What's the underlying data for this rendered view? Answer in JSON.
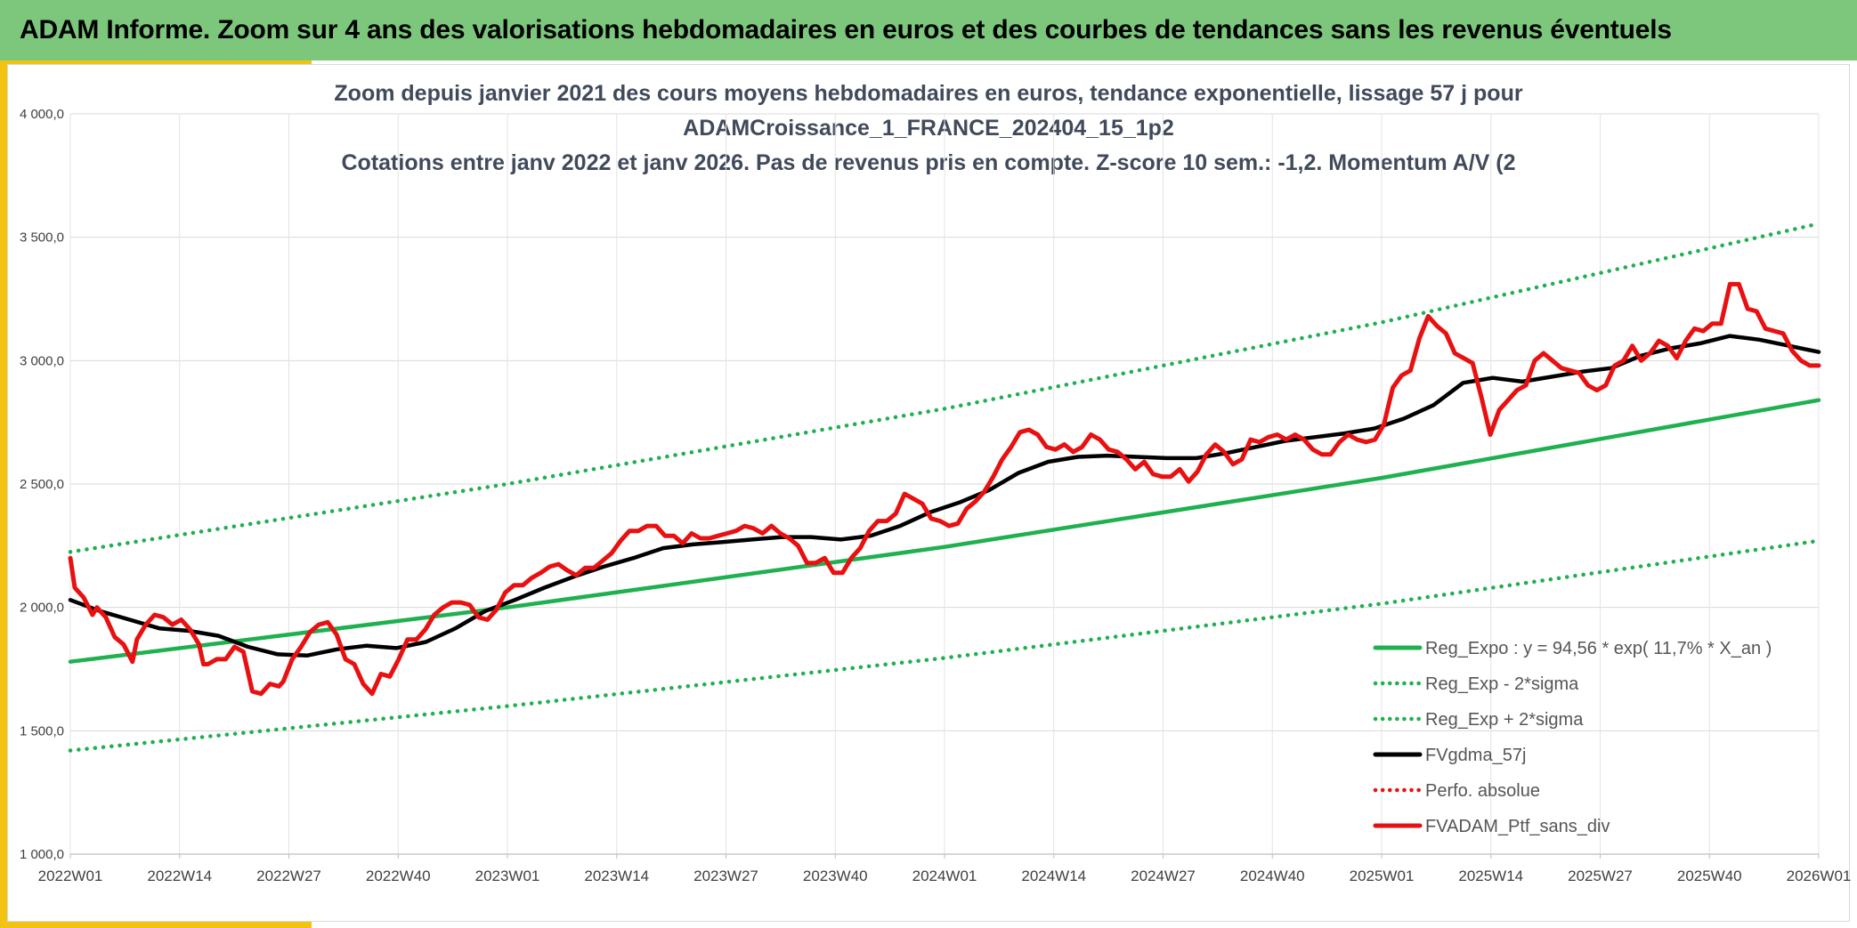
{
  "header": {
    "title": "ADAM Informe. Zoom sur 4 ans des valorisations hebdomadaires en euros et des courbes de tendances sans les revenus éventuels"
  },
  "colors": {
    "header_bg": "#7dc77d",
    "accent": "#f2c411",
    "trend": "#1fb050",
    "ma": "#000000",
    "price": "#e81010"
  },
  "chart_data": {
    "type": "line",
    "title_lines": [
      "Zoom depuis janvier 2021 des cours moyens hebdomadaires en euros, tendance exponentielle, lissage 57 j pour",
      "ADAMCroissance_1_FRANCE_202404_15_1p2",
      "Cotations entre janv 2022 et janv 2026. Pas de revenus pris en compte. Z-score 10 sem.: -1,2. Momentum A/V (2"
    ],
    "ylim": [
      1000,
      4000
    ],
    "y_ticks": [
      "1 000,0",
      "1 500,0",
      "2 000,0",
      "2 500,0",
      "3 000,0",
      "3 500,0",
      "4 000,0"
    ],
    "x_tick_labels": [
      "2022W01",
      "2022W14",
      "2022W27",
      "2022W40",
      "2023W01",
      "2023W14",
      "2023W27",
      "2023W40",
      "2024W01",
      "2024W14",
      "2024W27",
      "2024W40",
      "2025W01",
      "2025W14",
      "2025W27",
      "2025W40",
      "2026W01"
    ],
    "x_range_weeks": [
      0,
      208
    ],
    "grid": true,
    "legend_position": "bottom-right",
    "legend": [
      {
        "label": "Reg_Expo : y = 94,56 * exp( 11,7% *  X_an )",
        "color": "#1fb050",
        "style": "solid"
      },
      {
        "label": "Reg_Exp - 2*sigma",
        "color": "#1fb050",
        "style": "dotted"
      },
      {
        "label": "Reg_Exp + 2*sigma",
        "color": "#1fb050",
        "style": "dotted"
      },
      {
        "label": "FVgdma_57j",
        "color": "#000000",
        "style": "solid"
      },
      {
        "label": "Perfo. absolue",
        "color": "#e81010",
        "style": "dotted"
      },
      {
        "label": "FVADAM_Ptf_sans_div",
        "color": "#e81010",
        "style": "solid"
      }
    ],
    "series": [
      {
        "name": "Reg_Expo : y = 94,56 * exp( 11,7% *  X_an )",
        "color": "#1fb050",
        "style": "solid",
        "points": [
          [
            0,
            1780
          ],
          [
            52,
            2000
          ],
          [
            104,
            2245
          ],
          [
            156,
            2525
          ],
          [
            208,
            2840
          ]
        ]
      },
      {
        "name": "Reg_Exp - 2*sigma",
        "color": "#1fb050",
        "style": "dotted",
        "points": [
          [
            0,
            1420
          ],
          [
            52,
            1600
          ],
          [
            104,
            1795
          ],
          [
            156,
            2015
          ],
          [
            208,
            2270
          ]
        ]
      },
      {
        "name": "Reg_Exp + 2*sigma",
        "color": "#1fb050",
        "style": "dotted",
        "points": [
          [
            0,
            2225
          ],
          [
            52,
            2500
          ],
          [
            104,
            2805
          ],
          [
            156,
            3155
          ],
          [
            208,
            3555
          ]
        ]
      },
      {
        "name": "FVgdma_57j",
        "color": "#000000",
        "style": "solid",
        "points": [
          [
            0,
            2030
          ],
          [
            4,
            1985
          ],
          [
            8,
            1950
          ],
          [
            12,
            1915
          ],
          [
            16,
            1905
          ],
          [
            20,
            1885
          ],
          [
            24,
            1840
          ],
          [
            28,
            1810
          ],
          [
            32,
            1805
          ],
          [
            36,
            1830
          ],
          [
            40,
            1845
          ],
          [
            44,
            1835
          ],
          [
            48,
            1860
          ],
          [
            52,
            1915
          ],
          [
            56,
            1985
          ],
          [
            60,
            2030
          ],
          [
            64,
            2080
          ],
          [
            68,
            2125
          ],
          [
            72,
            2165
          ],
          [
            76,
            2200
          ],
          [
            80,
            2240
          ],
          [
            84,
            2255
          ],
          [
            88,
            2265
          ],
          [
            92,
            2275
          ],
          [
            96,
            2285
          ],
          [
            100,
            2285
          ],
          [
            104,
            2275
          ],
          [
            108,
            2290
          ],
          [
            112,
            2330
          ],
          [
            116,
            2385
          ],
          [
            120,
            2425
          ],
          [
            124,
            2475
          ],
          [
            128,
            2545
          ],
          [
            132,
            2590
          ],
          [
            136,
            2610
          ],
          [
            140,
            2615
          ],
          [
            144,
            2610
          ],
          [
            148,
            2605
          ],
          [
            152,
            2605
          ],
          [
            156,
            2625
          ],
          [
            160,
            2650
          ],
          [
            164,
            2675
          ],
          [
            168,
            2690
          ],
          [
            172,
            2705
          ],
          [
            176,
            2725
          ],
          [
            180,
            2765
          ],
          [
            184,
            2820
          ],
          [
            188,
            2910
          ],
          [
            192,
            2930
          ],
          [
            196,
            2915
          ],
          [
            200,
            2935
          ],
          [
            204,
            2955
          ],
          [
            208,
            2970
          ],
          [
            212,
            3020
          ],
          [
            216,
            3050
          ],
          [
            220,
            3070
          ],
          [
            224,
            3100
          ],
          [
            228,
            3085
          ],
          [
            232,
            3060
          ],
          [
            236,
            3035
          ]
        ]
      },
      {
        "name": "FVADAM_Ptf_sans_div",
        "color": "#e81010",
        "style": "solid",
        "points": [
          [
            0,
            2200
          ],
          [
            1,
            2080
          ],
          [
            3,
            2040
          ],
          [
            5,
            1970
          ],
          [
            6,
            2000
          ],
          [
            8,
            1960
          ],
          [
            10,
            1880
          ],
          [
            12,
            1850
          ],
          [
            14,
            1780
          ],
          [
            15,
            1870
          ],
          [
            17,
            1930
          ],
          [
            19,
            1970
          ],
          [
            21,
            1960
          ],
          [
            23,
            1930
          ],
          [
            25,
            1950
          ],
          [
            27,
            1910
          ],
          [
            29,
            1850
          ],
          [
            30,
            1770
          ],
          [
            31,
            1770
          ],
          [
            33,
            1790
          ],
          [
            35,
            1790
          ],
          [
            37,
            1840
          ],
          [
            39,
            1820
          ],
          [
            41,
            1660
          ],
          [
            43,
            1650
          ],
          [
            45,
            1690
          ],
          [
            47,
            1680
          ],
          [
            48,
            1700
          ],
          [
            50,
            1790
          ],
          [
            52,
            1840
          ],
          [
            54,
            1900
          ],
          [
            56,
            1930
          ],
          [
            58,
            1940
          ],
          [
            60,
            1890
          ],
          [
            62,
            1790
          ],
          [
            64,
            1770
          ],
          [
            66,
            1690
          ],
          [
            68,
            1650
          ],
          [
            70,
            1730
          ],
          [
            72,
            1720
          ],
          [
            74,
            1790
          ],
          [
            76,
            1870
          ],
          [
            78,
            1870
          ],
          [
            80,
            1910
          ],
          [
            82,
            1970
          ],
          [
            84,
            2000
          ],
          [
            86,
            2020
          ],
          [
            88,
            2020
          ],
          [
            90,
            2010
          ],
          [
            92,
            1960
          ],
          [
            94,
            1950
          ],
          [
            96,
            1990
          ],
          [
            98,
            2060
          ],
          [
            100,
            2090
          ],
          [
            102,
            2090
          ],
          [
            104,
            2120
          ],
          [
            106,
            2140
          ],
          [
            108,
            2165
          ],
          [
            110,
            2175
          ],
          [
            112,
            2150
          ],
          [
            114,
            2130
          ],
          [
            116,
            2160
          ],
          [
            118,
            2160
          ],
          [
            120,
            2190
          ],
          [
            122,
            2220
          ],
          [
            124,
            2270
          ],
          [
            126,
            2310
          ],
          [
            128,
            2310
          ],
          [
            130,
            2330
          ],
          [
            132,
            2330
          ],
          [
            134,
            2290
          ],
          [
            136,
            2290
          ],
          [
            138,
            2260
          ],
          [
            140,
            2300
          ],
          [
            142,
            2280
          ],
          [
            144,
            2280
          ],
          [
            146,
            2290
          ],
          [
            148,
            2300
          ],
          [
            150,
            2310
          ],
          [
            152,
            2330
          ],
          [
            154,
            2320
          ],
          [
            156,
            2300
          ],
          [
            158,
            2330
          ],
          [
            160,
            2300
          ],
          [
            162,
            2280
          ],
          [
            164,
            2250
          ],
          [
            166,
            2180
          ],
          [
            168,
            2180
          ],
          [
            170,
            2200
          ],
          [
            172,
            2140
          ],
          [
            174,
            2140
          ],
          [
            176,
            2200
          ],
          [
            178,
            2240
          ],
          [
            180,
            2310
          ],
          [
            182,
            2350
          ],
          [
            184,
            2350
          ],
          [
            186,
            2380
          ],
          [
            188,
            2460
          ],
          [
            190,
            2440
          ],
          [
            192,
            2420
          ],
          [
            194,
            2360
          ],
          [
            196,
            2350
          ],
          [
            198,
            2330
          ],
          [
            200,
            2340
          ],
          [
            202,
            2400
          ],
          [
            204,
            2430
          ],
          [
            206,
            2470
          ],
          [
            208,
            2530
          ],
          [
            210,
            2600
          ],
          [
            212,
            2650
          ],
          [
            214,
            2710
          ],
          [
            216,
            2720
          ],
          [
            218,
            2700
          ],
          [
            220,
            2650
          ],
          [
            222,
            2640
          ],
          [
            224,
            2660
          ],
          [
            226,
            2630
          ],
          [
            228,
            2650
          ],
          [
            230,
            2700
          ],
          [
            232,
            2680
          ],
          [
            234,
            2640
          ],
          [
            236,
            2630
          ],
          [
            238,
            2600
          ],
          [
            240,
            2560
          ],
          [
            242,
            2590
          ],
          [
            244,
            2540
          ],
          [
            246,
            2530
          ],
          [
            248,
            2530
          ],
          [
            250,
            2560
          ],
          [
            252,
            2510
          ],
          [
            254,
            2550
          ],
          [
            256,
            2620
          ],
          [
            258,
            2660
          ],
          [
            260,
            2630
          ],
          [
            262,
            2580
          ],
          [
            264,
            2600
          ],
          [
            266,
            2680
          ],
          [
            268,
            2670
          ],
          [
            270,
            2690
          ],
          [
            272,
            2700
          ],
          [
            274,
            2680
          ],
          [
            276,
            2700
          ],
          [
            278,
            2680
          ],
          [
            280,
            2640
          ],
          [
            282,
            2620
          ],
          [
            284,
            2620
          ],
          [
            286,
            2670
          ],
          [
            288,
            2700
          ],
          [
            290,
            2680
          ],
          [
            292,
            2670
          ],
          [
            294,
            2680
          ],
          [
            296,
            2740
          ],
          [
            298,
            2890
          ],
          [
            300,
            2940
          ],
          [
            302,
            2960
          ],
          [
            304,
            3090
          ],
          [
            306,
            3180
          ],
          [
            308,
            3140
          ],
          [
            310,
            3110
          ],
          [
            312,
            3030
          ],
          [
            314,
            3010
          ],
          [
            316,
            2990
          ],
          [
            318,
            2850
          ],
          [
            320,
            2700
          ],
          [
            322,
            2800
          ],
          [
            324,
            2840
          ],
          [
            326,
            2880
          ],
          [
            328,
            2900
          ],
          [
            330,
            3000
          ],
          [
            332,
            3030
          ],
          [
            334,
            3000
          ],
          [
            336,
            2970
          ],
          [
            338,
            2960
          ],
          [
            340,
            2950
          ],
          [
            342,
            2900
          ],
          [
            344,
            2880
          ],
          [
            346,
            2900
          ],
          [
            348,
            2980
          ],
          [
            350,
            3000
          ],
          [
            352,
            3060
          ],
          [
            354,
            3000
          ],
          [
            356,
            3030
          ],
          [
            358,
            3080
          ],
          [
            360,
            3060
          ],
          [
            362,
            3010
          ],
          [
            364,
            3080
          ],
          [
            366,
            3130
          ],
          [
            368,
            3120
          ],
          [
            370,
            3150
          ],
          [
            372,
            3150
          ],
          [
            374,
            3310
          ],
          [
            376,
            3310
          ],
          [
            378,
            3210
          ],
          [
            380,
            3200
          ],
          [
            382,
            3130
          ],
          [
            384,
            3120
          ],
          [
            386,
            3110
          ],
          [
            388,
            3040
          ],
          [
            390,
            3000
          ],
          [
            392,
            2980
          ],
          [
            394,
            2980
          ]
        ]
      }
    ]
  }
}
